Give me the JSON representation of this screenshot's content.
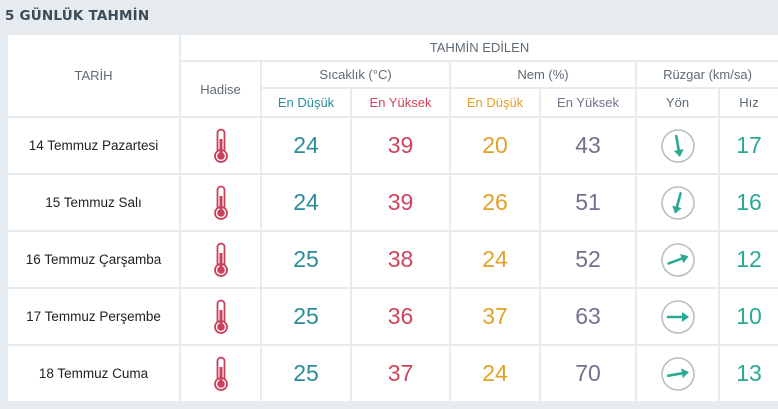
{
  "title": "5 GÜNLÜK TAHMİN",
  "header": {
    "tarih": "TARİH",
    "tahmin_edilen": "TAHMİN EDİLEN",
    "hadise": "Hadise",
    "sicaklik": "Sıcaklık (°C)",
    "nem": "Nem (%)",
    "ruzgar": "Rüzgar (km/sa)",
    "sicaklik_min": "En Düşük",
    "sicaklik_max": "En Yüksek",
    "nem_min": "En Düşük",
    "nem_max": "En Yüksek",
    "yon": "Yön",
    "hiz": "Hız"
  },
  "rows": [
    {
      "date": "14 Temmuz Pazartesi",
      "hadise": "thermometer-icon",
      "temp_min": "24",
      "temp_max": "39",
      "hum_min": "20",
      "hum_max": "43",
      "wind_dir_deg": 170,
      "wind_speed": "17"
    },
    {
      "date": "15 Temmuz Salı",
      "hadise": "thermometer-icon",
      "temp_min": "24",
      "temp_max": "39",
      "hum_min": "26",
      "hum_max": "51",
      "wind_dir_deg": 195,
      "wind_speed": "16"
    },
    {
      "date": "16 Temmuz Çarşamba",
      "hadise": "thermometer-icon",
      "temp_min": "25",
      "temp_max": "38",
      "hum_min": "24",
      "hum_max": "52",
      "wind_dir_deg": 70,
      "wind_speed": "12"
    },
    {
      "date": "17 Temmuz Perşembe",
      "hadise": "thermometer-icon",
      "temp_min": "25",
      "temp_max": "36",
      "hum_min": "37",
      "hum_max": "63",
      "wind_dir_deg": 90,
      "wind_speed": "10"
    },
    {
      "date": "18 Temmuz Cuma",
      "hadise": "thermometer-icon",
      "temp_min": "25",
      "temp_max": "37",
      "hum_min": "24",
      "hum_max": "70",
      "wind_dir_deg": 80,
      "wind_speed": "13"
    }
  ],
  "colors": {
    "temp_min": "#2b8c9c",
    "temp_max": "#d2425c",
    "hum_min": "#e1a128",
    "hum_max": "#76708e",
    "wind": "#2baa93",
    "thermometer": "#c8405a"
  }
}
